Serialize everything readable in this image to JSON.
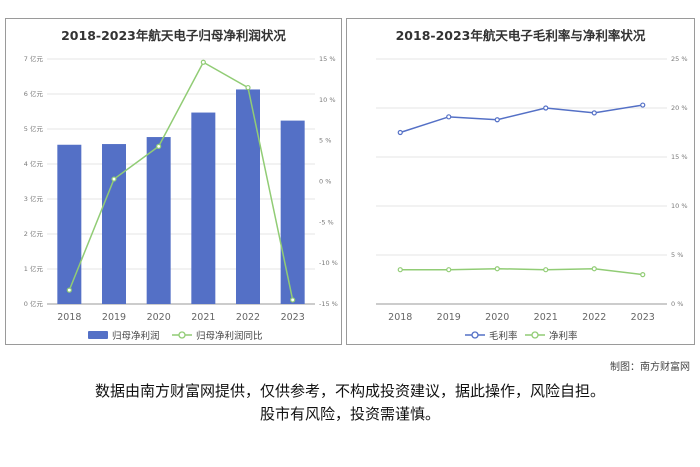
{
  "chart_data": [
    {
      "type": "bar",
      "title": "2018-2023年航天电子归母净利润状况",
      "categories": [
        "2018",
        "2019",
        "2020",
        "2021",
        "2022",
        "2023"
      ],
      "y_ticks": [
        "0 亿元",
        "1 亿元",
        "2 亿元",
        "3 亿元",
        "4 亿元",
        "5 亿元",
        "6 亿元",
        "7 亿元"
      ],
      "y2_ticks": [
        "-15 %",
        "-10 %",
        "-5 %",
        "0 %",
        "5 %",
        "10 %",
        "15 %"
      ],
      "ylim": [
        0,
        7
      ],
      "y2lim": [
        -15,
        15
      ],
      "grid": true,
      "legend_position": "bottom",
      "series": [
        {
          "name": "归母净利润",
          "type": "bar",
          "axis": "left",
          "color": "#5470c6",
          "values": [
            4.55,
            4.57,
            4.77,
            5.47,
            6.13,
            5.24
          ]
        },
        {
          "name": "归母净利润同比",
          "type": "line",
          "axis": "right",
          "color": "#91cc75",
          "values": [
            -13.3,
            0.3,
            4.3,
            14.6,
            11.5,
            -14.5
          ]
        }
      ]
    },
    {
      "type": "line",
      "title": "2018-2023年航天电子毛利率与净利率状况",
      "categories": [
        "2018",
        "2019",
        "2020",
        "2021",
        "2022",
        "2023"
      ],
      "y2_ticks": [
        "0 %",
        "5 %",
        "10 %",
        "15 %",
        "20 %",
        "25 %"
      ],
      "y2lim": [
        0,
        25
      ],
      "grid": true,
      "legend_position": "bottom",
      "series": [
        {
          "name": "毛利率",
          "color": "#5470c6",
          "values": [
            17.5,
            19.1,
            18.8,
            20.0,
            19.5,
            20.3
          ]
        },
        {
          "name": "净利率",
          "color": "#91cc75",
          "values": [
            3.5,
            3.5,
            3.6,
            3.5,
            3.6,
            3.0
          ]
        }
      ]
    }
  ],
  "credit": "制图：南方财富网",
  "disclaimer": {
    "line1": "数据由南方财富网提供，仅供参考，不构成投资建议，据此操作，风险自担。",
    "line2": "股市有风险，投资需谨慎。"
  }
}
